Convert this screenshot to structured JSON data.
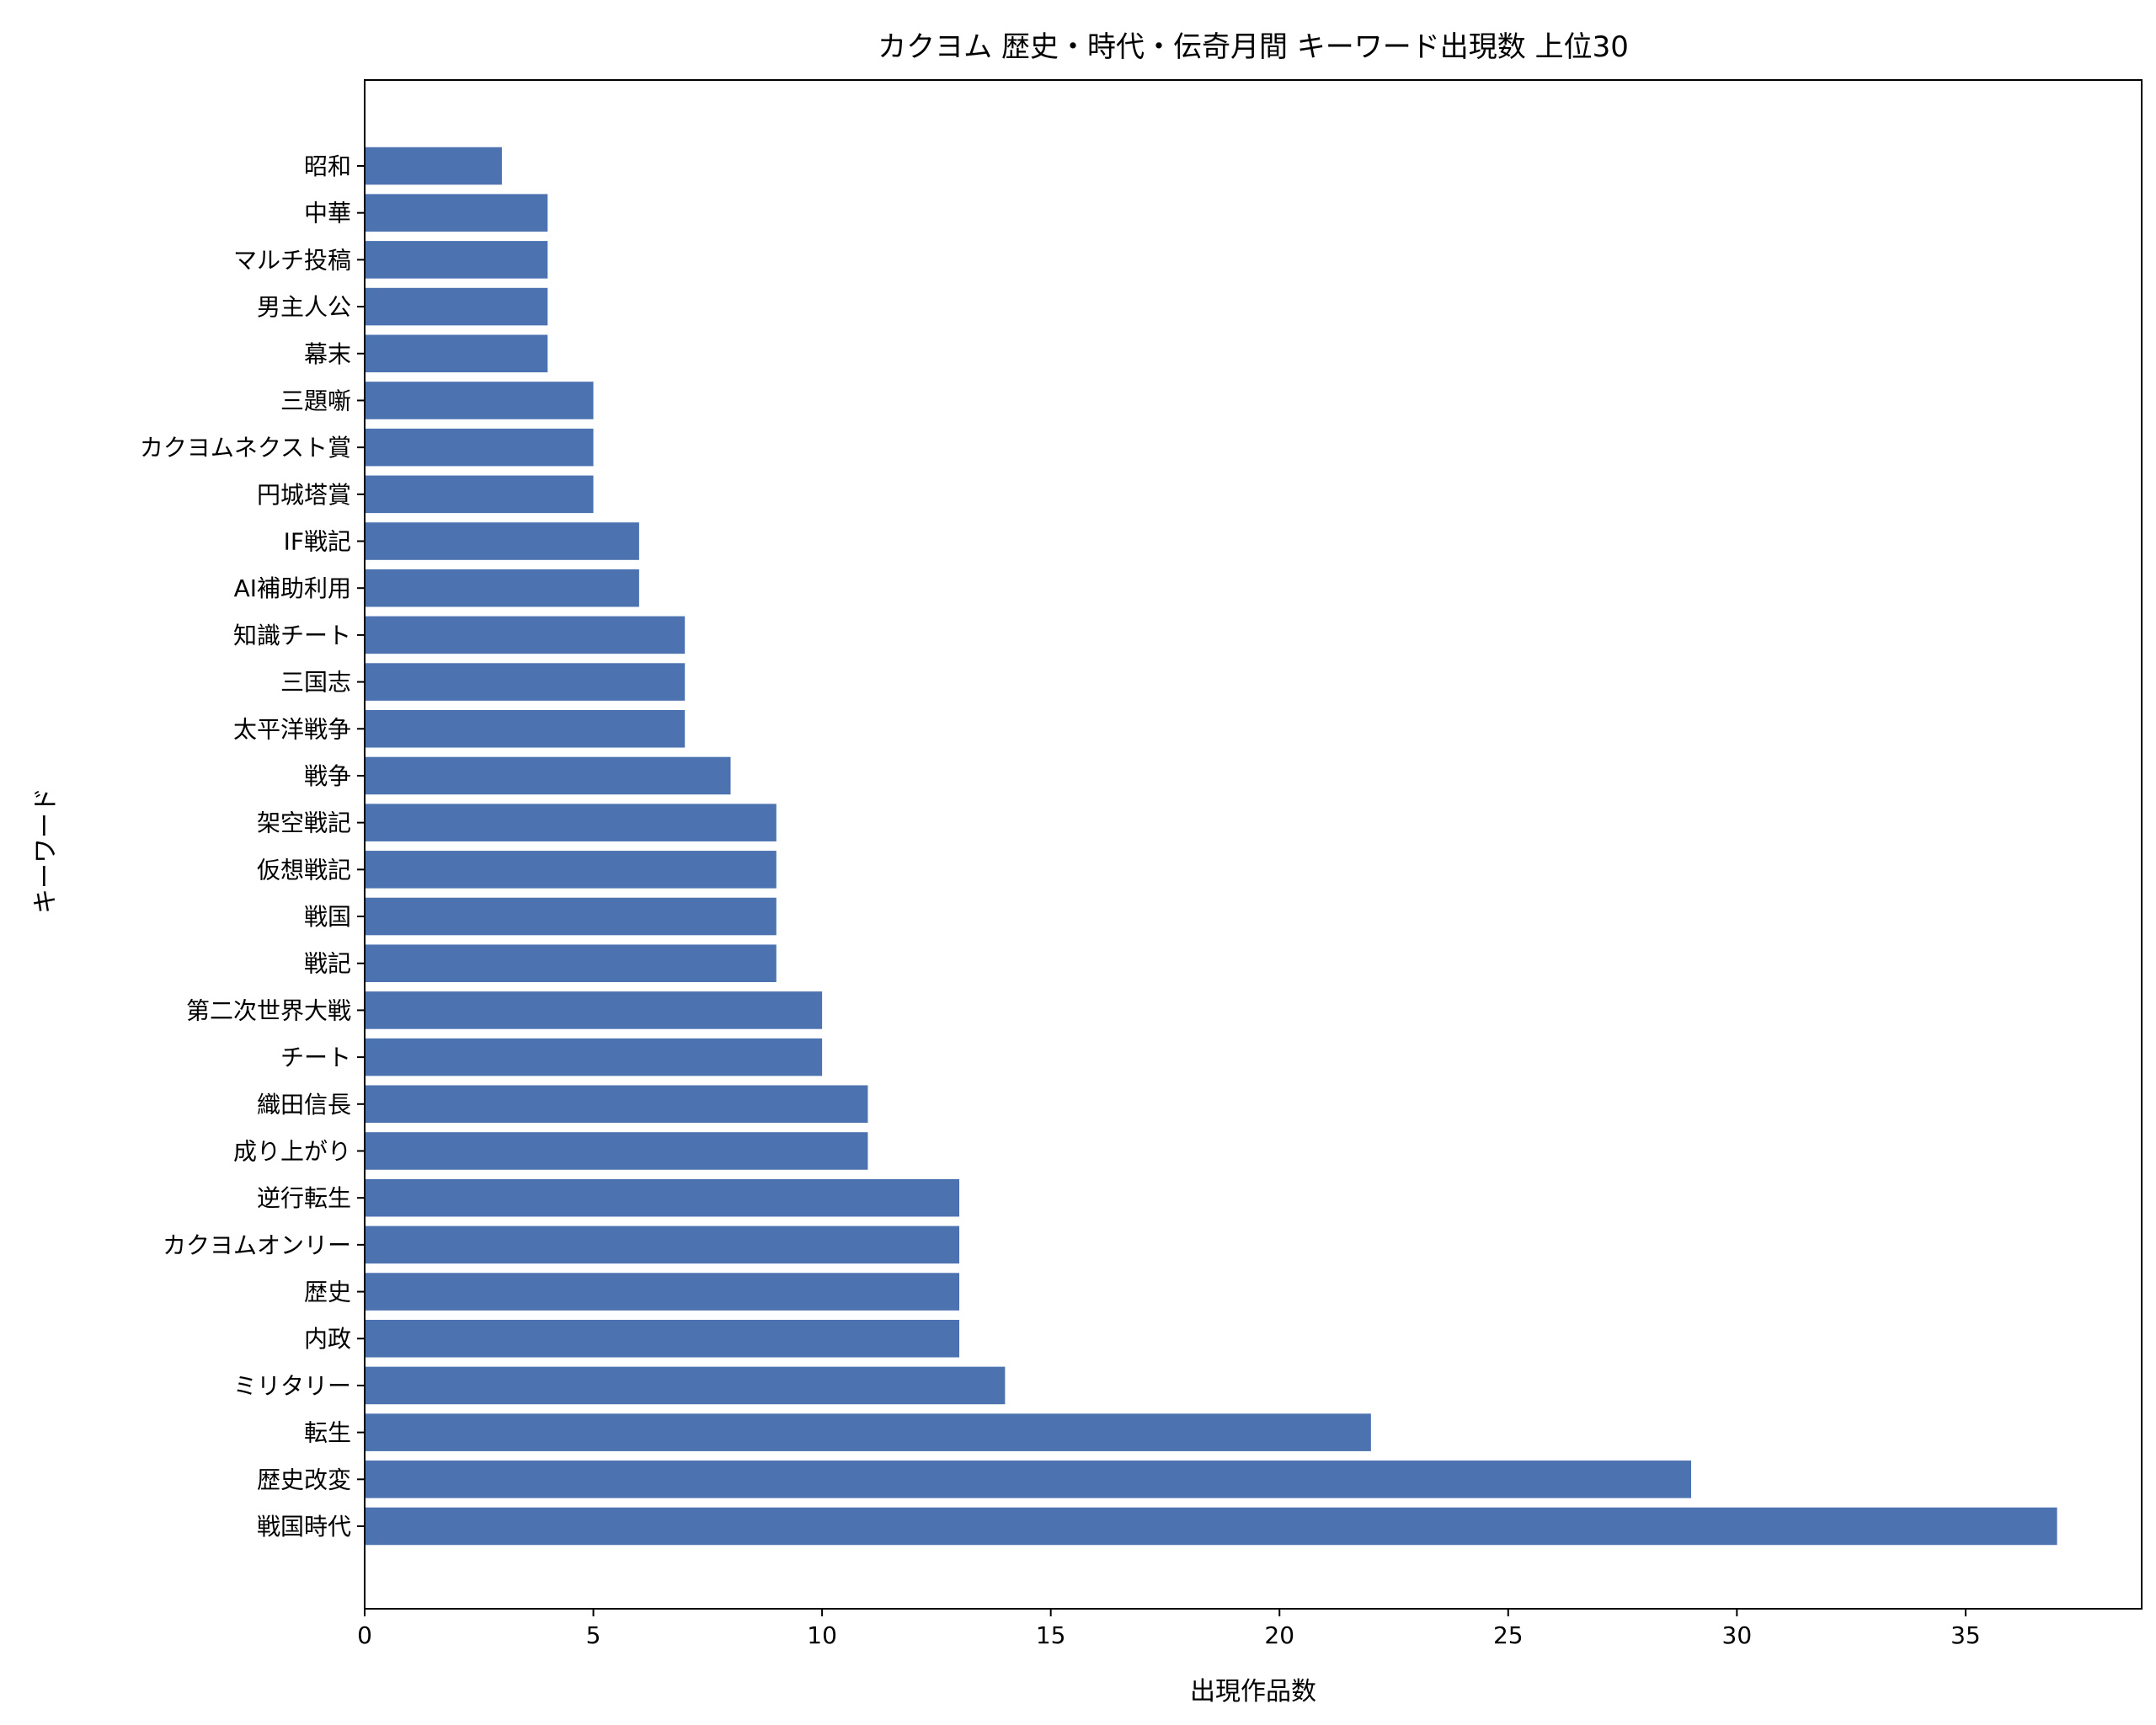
{
  "chart_data": {
    "type": "bar",
    "orientation": "horizontal",
    "title": "カクヨム 歴史・時代・伝奇月間 キーワード出現数 上位30",
    "xlabel": "出現作品数",
    "ylabel": "キーワード",
    "xlim": [
      0,
      38.85
    ],
    "xticks": [
      0,
      5,
      10,
      15,
      20,
      25,
      30,
      35
    ],
    "grid": false,
    "bar_color": "#4c72b0",
    "categories": [
      "戦国時代",
      "歴史改変",
      "転生",
      "ミリタリー",
      "内政",
      "歴史",
      "カクヨムオンリー",
      "逆行転生",
      "成り上がり",
      "織田信長",
      "チート",
      "第二次世界大戦",
      "戦記",
      "戦国",
      "仮想戦記",
      "架空戦記",
      "戦争",
      "太平洋戦争",
      "三国志",
      "知識チート",
      "AI補助利用",
      "IF戦記",
      "円城塔賞",
      "カクヨムネクスト賞",
      "三題噺",
      "幕末",
      "男主人公",
      "マルチ投稿",
      "中華",
      "昭和"
    ],
    "values": [
      37,
      29,
      22,
      14,
      13,
      13,
      13,
      13,
      11,
      11,
      10,
      10,
      9,
      9,
      9,
      9,
      8,
      7,
      7,
      7,
      6,
      6,
      5,
      5,
      5,
      4,
      4,
      4,
      4,
      3
    ]
  }
}
